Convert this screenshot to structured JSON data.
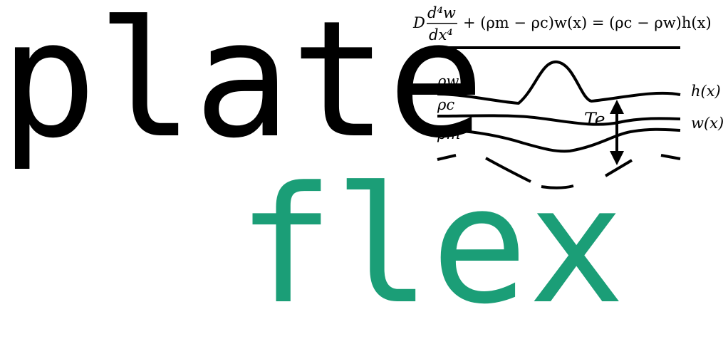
{
  "logo": {
    "word_top": "plate",
    "word_bottom": "flex",
    "colors": {
      "word_top": "#000000",
      "word_bottom": "#1b9e77",
      "lines": "#000000"
    }
  },
  "diagram": {
    "equation": {
      "D": "D",
      "num": "d⁴w",
      "den": "dx⁴",
      "rest": "+ (ρm − ρc)w(x) = (ρc − ρw)h(x)"
    },
    "labels": {
      "rho_w": "ρw",
      "rho_c": "ρc",
      "rho_m": "ρm",
      "h_x": "h(x)",
      "w_x": "w(x)",
      "Te": "Te"
    }
  }
}
